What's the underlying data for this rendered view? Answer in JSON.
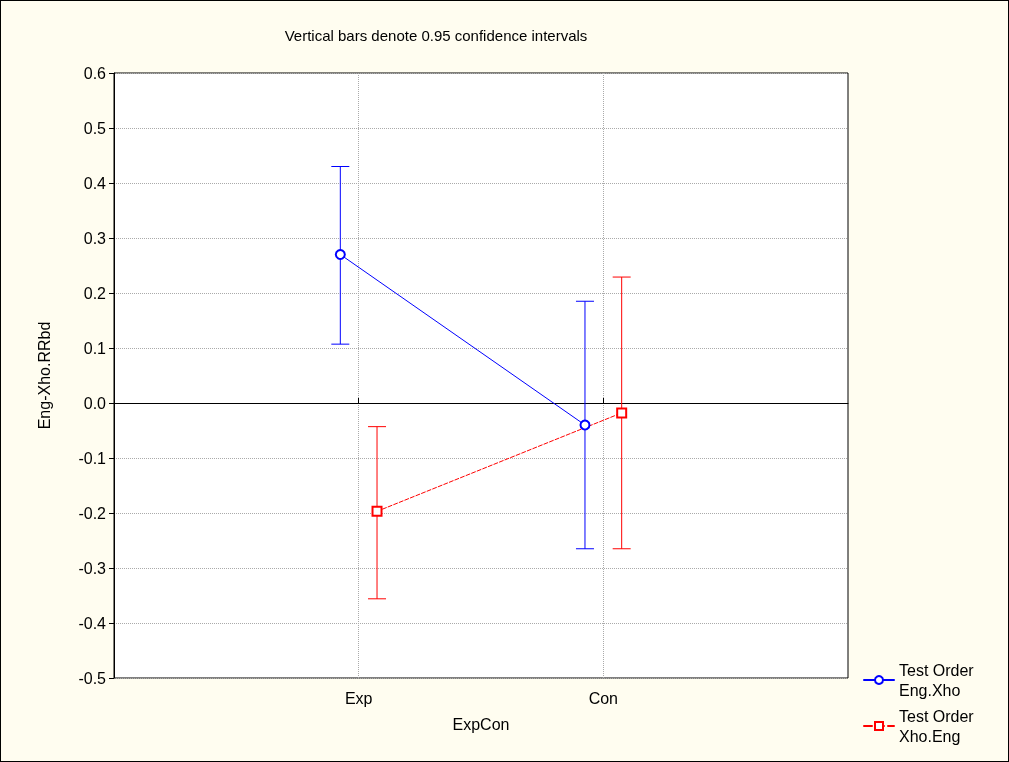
{
  "chart_data": {
    "type": "line",
    "title": "Vertical bars denote 0.95 confidence intervals",
    "xlabel": "ExpCon",
    "ylabel": "Eng-Xho.RRbd",
    "categories": [
      "Exp",
      "Con"
    ],
    "series": [
      {
        "name": "Test Order Eng.Xho",
        "color": "#0000ff",
        "values": [
          0.27,
          -0.04
        ],
        "errors": [
          [
            0.107,
            0.43
          ],
          [
            -0.265,
            0.185
          ]
        ],
        "marker": "circle",
        "line_style": "solid"
      },
      {
        "name": "Test Order Xho.Eng",
        "color": "#ff0000",
        "values": [
          -0.197,
          -0.018
        ],
        "errors": [
          [
            -0.356,
            -0.043
          ],
          [
            -0.265,
            0.229
          ]
        ],
        "marker": "square",
        "line_style": "dashed"
      }
    ],
    "ylim": [
      -0.5,
      0.6
    ],
    "yticks": [
      {
        "value": -0.5,
        "label": "-0.5"
      },
      {
        "value": -0.4,
        "label": "-0.4"
      },
      {
        "value": -0.3,
        "label": "-0.3"
      },
      {
        "value": -0.2,
        "label": "-0.2"
      },
      {
        "value": -0.1,
        "label": "-0.1"
      },
      {
        "value": 0,
        "label": "0.0"
      },
      {
        "value": 0.1,
        "label": "0.1"
      },
      {
        "value": 0.2,
        "label": "0.2"
      },
      {
        "value": 0.3,
        "label": "0.3"
      },
      {
        "value": 0.4,
        "label": "0.4"
      },
      {
        "value": 0.5,
        "label": "0.5"
      },
      {
        "value": 0.6,
        "label": "0.6"
      }
    ],
    "grid": true,
    "legend": "bottom right"
  }
}
